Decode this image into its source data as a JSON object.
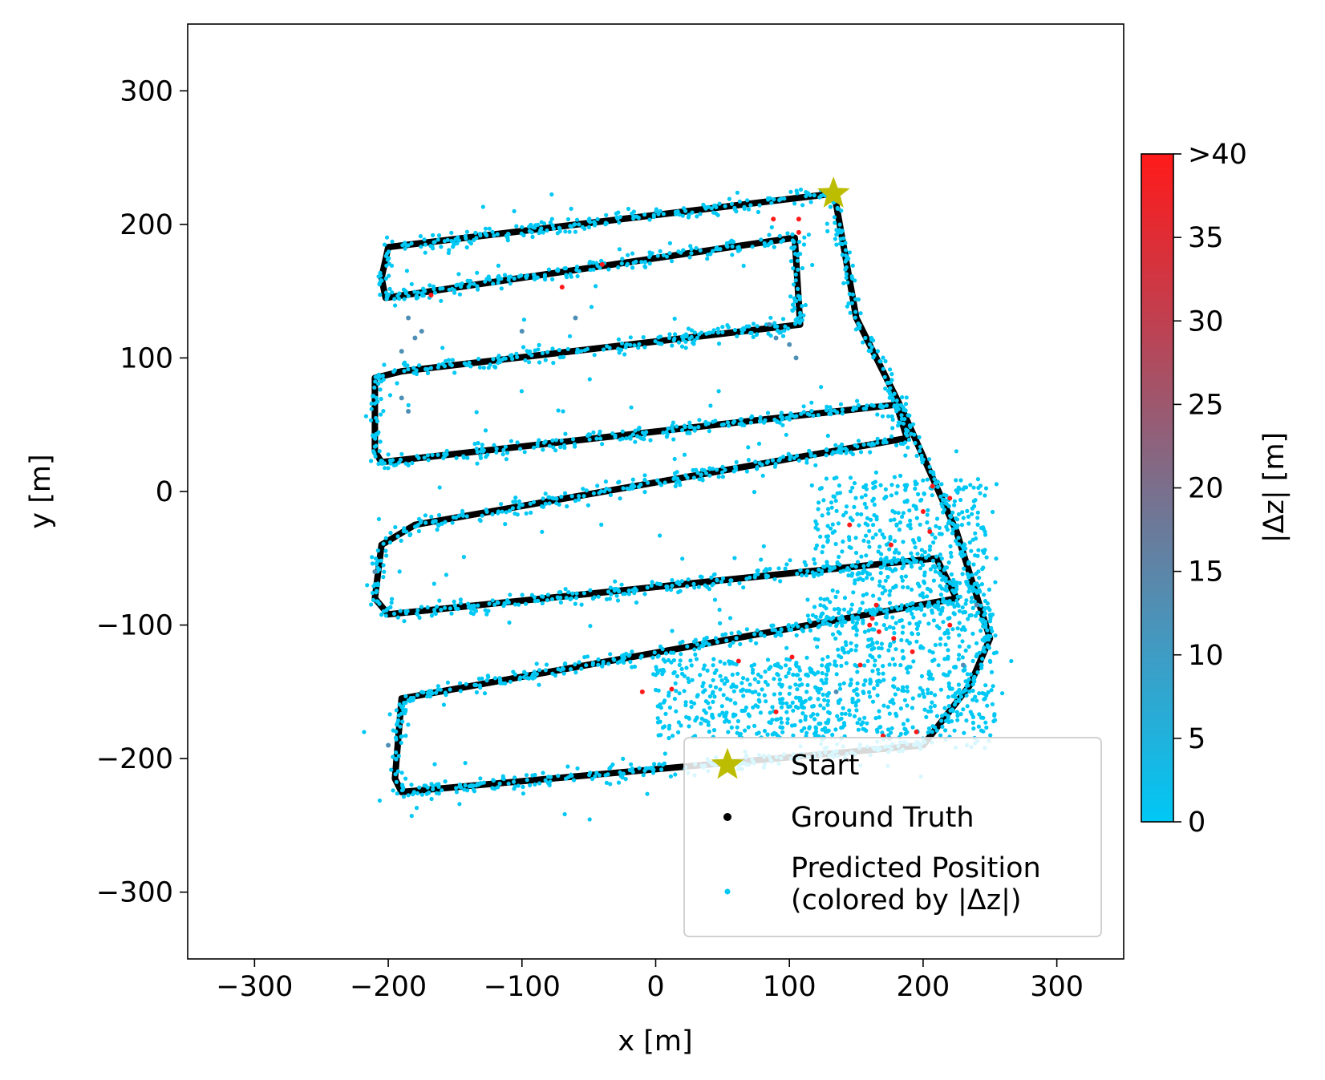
{
  "chart_data": {
    "type": "scatter",
    "xlabel": "x [m]",
    "ylabel": "y [m]",
    "xlim": [
      -350,
      350
    ],
    "ylim": [
      -350,
      350
    ],
    "xticks": [
      -300,
      -200,
      -100,
      0,
      100,
      200,
      300
    ],
    "yticks": [
      -300,
      -200,
      -100,
      0,
      100,
      200,
      300
    ],
    "xtick_labels": [
      "−300",
      "−200",
      "−100",
      "0",
      "100",
      "200",
      "300"
    ],
    "ytick_labels": [
      "−300",
      "−200",
      "−100",
      "0",
      "100",
      "200",
      "300"
    ],
    "grid": false,
    "legend_position": "lower-right",
    "start": {
      "label": "Start",
      "x": 133,
      "y": 223,
      "color": "#bcbd00",
      "marker": "star"
    },
    "ground_truth": {
      "name": "Ground Truth",
      "color": "#000000",
      "path": [
        [
          133,
          223
        ],
        [
          -200,
          183
        ],
        [
          -205,
          160
        ],
        [
          -202,
          145
        ],
        [
          104,
          190
        ],
        [
          108,
          125
        ],
        [
          -190,
          90
        ],
        [
          -210,
          85
        ],
        [
          -210,
          30
        ],
        [
          -205,
          22
        ],
        [
          180,
          65
        ],
        [
          188,
          40
        ],
        [
          -180,
          -25
        ],
        [
          -205,
          -40
        ],
        [
          -210,
          -80
        ],
        [
          -200,
          -92
        ],
        [
          210,
          -50
        ],
        [
          220,
          -70
        ],
        [
          225,
          -80
        ],
        [
          -190,
          -155
        ],
        [
          -195,
          -215
        ],
        [
          -190,
          -225
        ],
        [
          200,
          -190
        ],
        [
          235,
          -145
        ],
        [
          250,
          -110
        ],
        [
          225,
          -30
        ],
        [
          185,
          60
        ],
        [
          150,
          130
        ],
        [
          135,
          215
        ],
        [
          133,
          223
        ]
      ]
    },
    "predicted": {
      "name": "Predicted Position\n(colored by |Δz|)",
      "legend_lines": [
        "Predicted Position",
        "(colored by |Δz|)"
      ],
      "color_low": "#00c8f5",
      "color_high": "#ff1a1a",
      "value_range": [
        0,
        40
      ],
      "points_generated_along_ground_truth": true,
      "outliers_high_dz": [
        [
          88,
          204
        ],
        [
          107,
          204
        ],
        [
          107,
          194
        ],
        [
          -40,
          170
        ],
        [
          -70,
          153
        ],
        [
          -168,
          147
        ],
        [
          207,
          4
        ],
        [
          220,
          -5
        ],
        [
          200,
          -15
        ],
        [
          205,
          -30
        ],
        [
          145,
          -25
        ],
        [
          176,
          -40
        ],
        [
          220,
          -100
        ],
        [
          165,
          -85
        ],
        [
          167,
          -105
        ],
        [
          162,
          -95
        ],
        [
          178,
          -110
        ],
        [
          192,
          -120
        ],
        [
          160,
          -100
        ],
        [
          153,
          -130
        ],
        [
          -10,
          -150
        ],
        [
          62,
          -127
        ],
        [
          90,
          -165
        ],
        [
          195,
          -180
        ],
        [
          170,
          -183
        ],
        [
          12,
          -148
        ],
        [
          102,
          -124
        ]
      ],
      "outliers_mid_dz": [
        [
          -185,
          130
        ],
        [
          -180,
          115
        ],
        [
          -175,
          120
        ],
        [
          -190,
          105
        ],
        [
          -190,
          70
        ],
        [
          -185,
          60
        ],
        [
          85,
          125
        ],
        [
          90,
          115
        ],
        [
          100,
          110
        ],
        [
          105,
          100
        ],
        [
          -60,
          130
        ],
        [
          -100,
          120
        ],
        [
          230,
          -130
        ],
        [
          240,
          -85
        ],
        [
          175,
          -185
        ],
        [
          135,
          -150
        ],
        [
          -210,
          -60
        ],
        [
          -200,
          -190
        ]
      ]
    },
    "colorbar": {
      "label": "|Δz| [m]",
      "ticks": [
        0,
        5,
        10,
        15,
        20,
        25,
        30,
        35,
        40
      ],
      "tick_labels": [
        "0",
        "5",
        "10",
        "15",
        "20",
        "25",
        "30",
        "35",
        ">40"
      ],
      "colors": [
        "#00c8f5",
        "#3f9cc4",
        "#7a6f8c",
        "#c04050",
        "#ff1a1a"
      ]
    }
  }
}
